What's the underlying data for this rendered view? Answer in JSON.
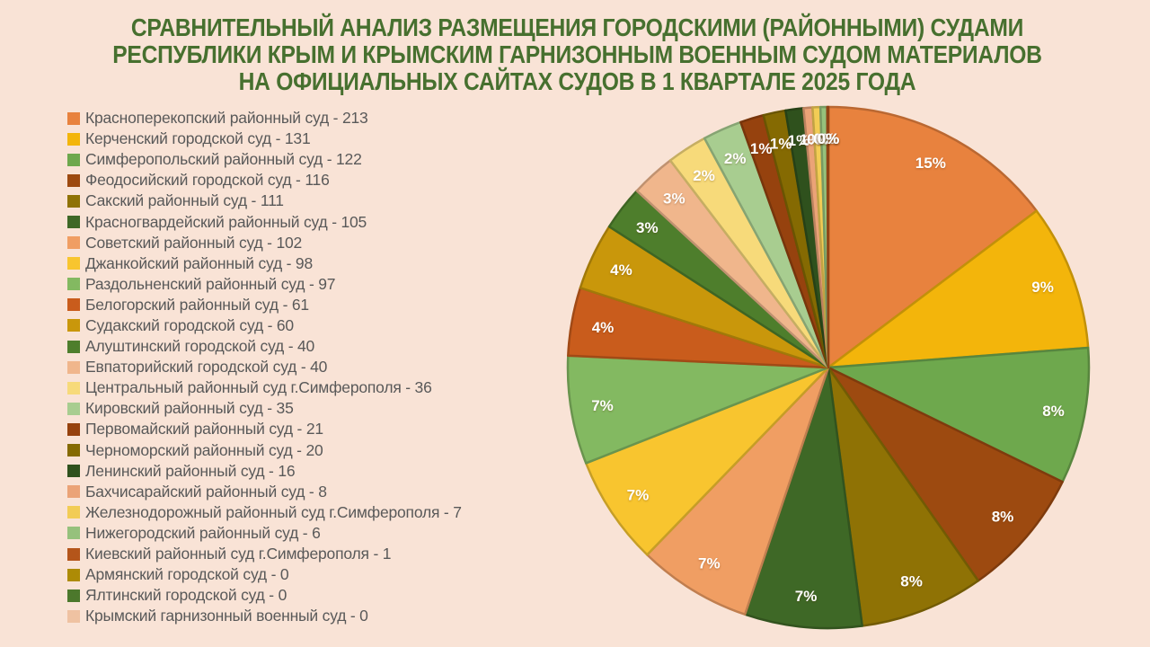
{
  "page": {
    "background": "#F9E3D6"
  },
  "title": {
    "color": "#47702F",
    "lines": [
      "СРАВНИТЕЛЬНЫЙ АНАЛИЗ РАЗМЕЩЕНИЯ ГОРОДСКИМИ (РАЙОННЫМИ) СУДАМИ",
      "РЕСПУБЛИКИ КРЫМ И КРЫМСКИМ ГАРНИЗОННЫМ ВОЕННЫМ СУДОМ МАТЕРИАЛОВ",
      "НА ОФИЦИАЛЬНЫХ САЙТАХ СУДОВ В 1 КВАРТАЛЕ 2025 ГОДА"
    ]
  },
  "legend": {
    "separator": " - "
  },
  "chart_data": {
    "type": "pie",
    "title": "СРАВНИТЕЛЬНЫЙ АНАЛИЗ РАЗМЕЩЕНИЯ ГОРОДСКИМИ (РАЙОННЫМИ) СУДАМИ РЕСПУБЛИКИ КРЫМ И КРЫМСКИМ ГАРНИЗОННЫМ ВОЕННЫМ СУДОМ МАТЕРИАЛОВ НА ОФИЦИАЛЬНЫХ САЙТАХ СУДОВ В 1 КВАРТАЛЕ 2025 ГОДА",
    "legend_position": "left",
    "start_angle_deg": 0,
    "direction": "clockwise",
    "total": 1446,
    "series": [
      {
        "name": "Красноперекопский районный суд",
        "value": 213,
        "percent_label": "15%",
        "color": "#E8823E"
      },
      {
        "name": "Керченский городской суд",
        "value": 131,
        "percent_label": "9%",
        "color": "#F3B50B"
      },
      {
        "name": "Симферопольский районный суд",
        "value": 122,
        "percent_label": "8%",
        "color": "#6EA84D"
      },
      {
        "name": "Феодосийский городской суд",
        "value": 116,
        "percent_label": "8%",
        "color": "#9D4A10"
      },
      {
        "name": "Сакский районный суд",
        "value": 111,
        "percent_label": "8%",
        "color": "#8F7205"
      },
      {
        "name": "Красногвардейский районный суд",
        "value": 105,
        "percent_label": "7%",
        "color": "#3E6826"
      },
      {
        "name": "Советский районный суд",
        "value": 102,
        "percent_label": "7%",
        "color": "#F09E63"
      },
      {
        "name": "Джанкойский районный суд",
        "value": 98,
        "percent_label": "7%",
        "color": "#F8C52F"
      },
      {
        "name": "Раздольненский районный суд",
        "value": 97,
        "percent_label": "7%",
        "color": "#83B961"
      },
      {
        "name": "Белогорский районный суд",
        "value": 61,
        "percent_label": "4%",
        "color": "#C95C1C"
      },
      {
        "name": "Судакский городской суд",
        "value": 60,
        "percent_label": "4%",
        "color": "#C9970B"
      },
      {
        "name": "Алуштинский городской суд",
        "value": 40,
        "percent_label": "3%",
        "color": "#4E7E2C"
      },
      {
        "name": "Евпаторийский городской суд",
        "value": 40,
        "percent_label": "3%",
        "color": "#F0B68C"
      },
      {
        "name": "Центральный районный суд г.Симферополя",
        "value": 36,
        "percent_label": "2%",
        "color": "#F7DA7A"
      },
      {
        "name": "Кировский районный суд",
        "value": 35,
        "percent_label": "2%",
        "color": "#A8CD90"
      },
      {
        "name": "Первомайский районный суд",
        "value": 21,
        "percent_label": "1%",
        "color": "#96420E"
      },
      {
        "name": "Черноморский районный суд",
        "value": 20,
        "percent_label": "1%",
        "color": "#856A02"
      },
      {
        "name": "Ленинский районный суд",
        "value": 16,
        "percent_label": "1%",
        "color": "#2F511D"
      },
      {
        "name": "Бахчисарайский районный суд",
        "value": 8,
        "percent_label": "1%",
        "color": "#EBA377"
      },
      {
        "name": "Железнодорожный районный суд г.Симферополя",
        "value": 7,
        "percent_label": "0%",
        "color": "#F2CC55"
      },
      {
        "name": "Нижегородский районный суд",
        "value": 6,
        "percent_label": "0%",
        "color": "#96C17C"
      },
      {
        "name": "Киевский районный суд г.Симферополя",
        "value": 1,
        "percent_label": "0%",
        "color": "#B4551A"
      },
      {
        "name": "Армянский городской суд",
        "value": 0,
        "percent_label": "0%",
        "color": "#AD8B05"
      },
      {
        "name": "Ялтинский городской суд",
        "value": 0,
        "percent_label": "0%",
        "color": "#4C782C"
      },
      {
        "name": "Крымский гарнизонный военный суд",
        "value": 0,
        "percent_label": "0%",
        "color": "#EFC2A2"
      }
    ]
  }
}
